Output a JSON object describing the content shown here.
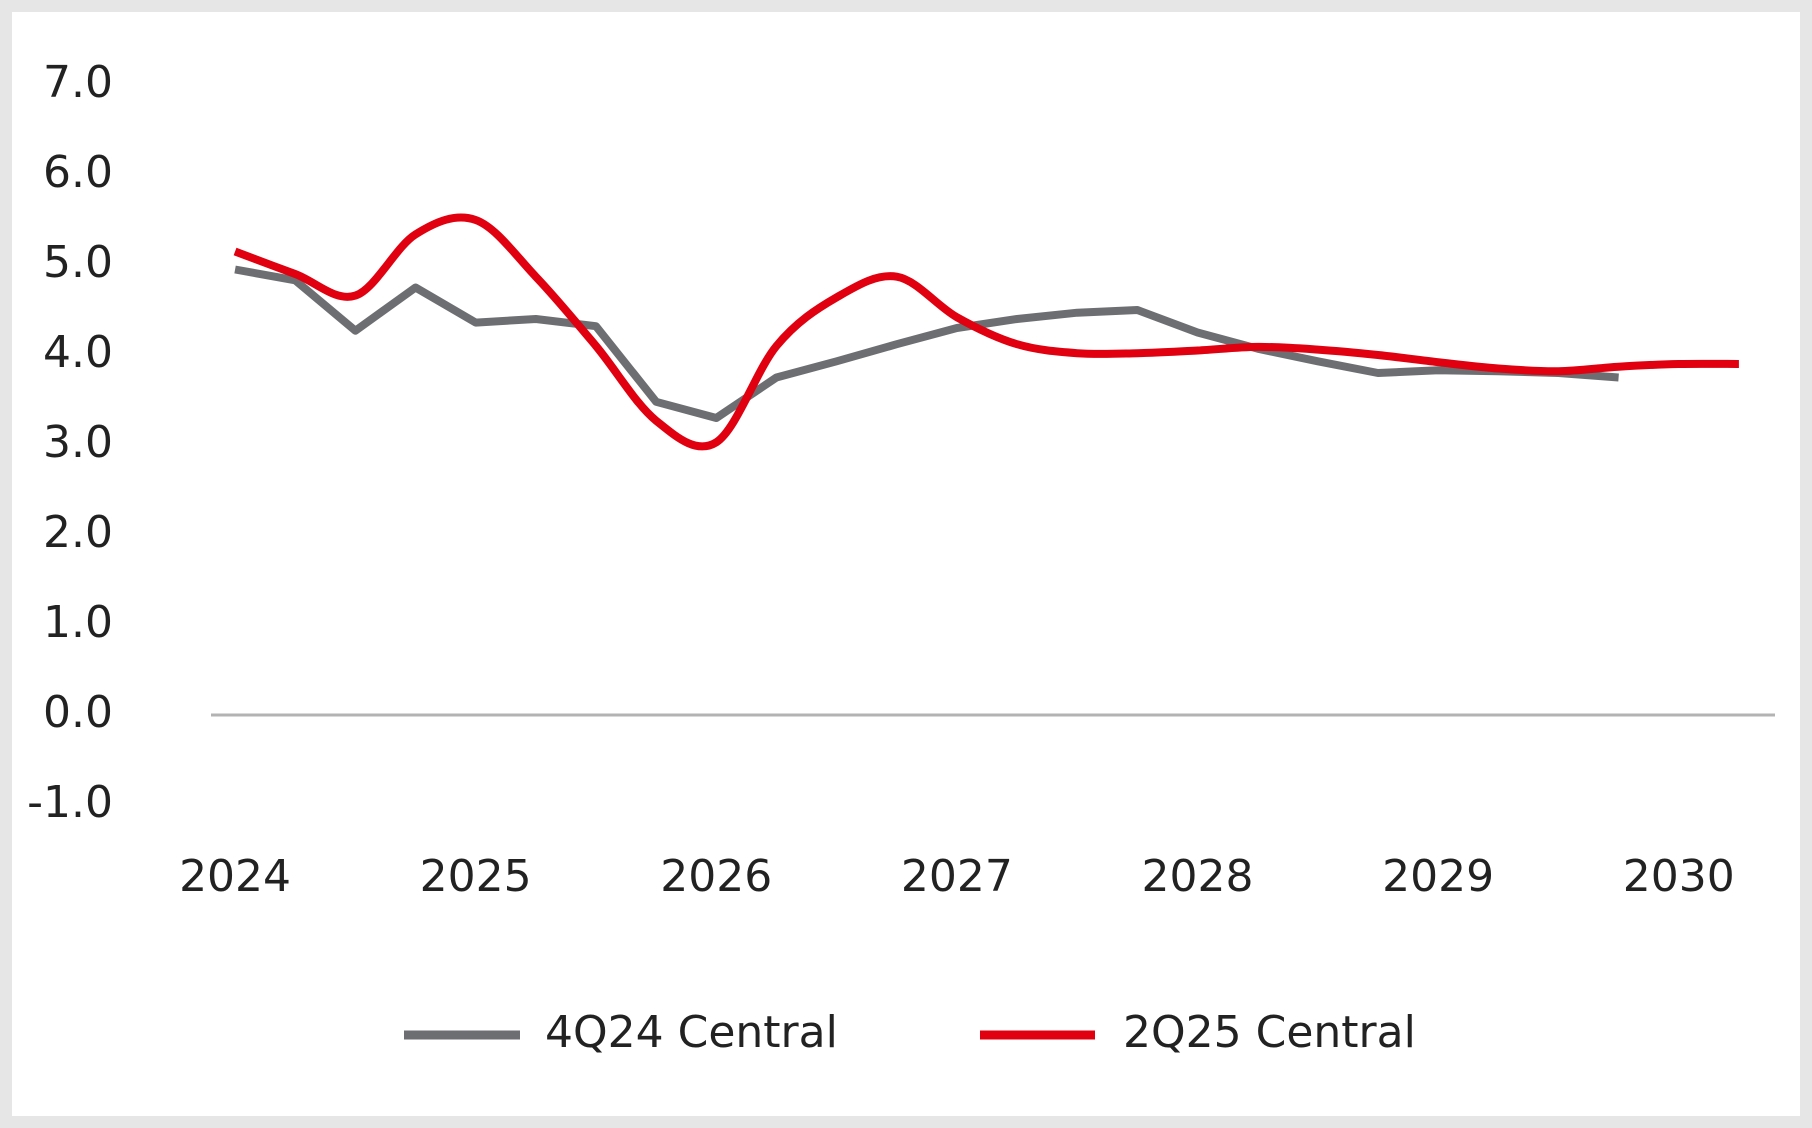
{
  "chart_data": {
    "type": "line",
    "xlim": [
      2023.9,
      2030.4
    ],
    "xticks": [
      2024,
      2025,
      2026,
      2027,
      2028,
      2029,
      2030
    ],
    "ylim": [
      -1,
      7
    ],
    "yticks": [
      {
        "value": -1,
        "label": "-1.0"
      },
      {
        "value": 0,
        "label": "0.0"
      },
      {
        "value": 1,
        "label": "1.0"
      },
      {
        "value": 2,
        "label": "2.0"
      },
      {
        "value": 3,
        "label": "3.0"
      },
      {
        "value": 4,
        "label": "4.0"
      },
      {
        "value": 5,
        "label": "5.0"
      },
      {
        "value": 6,
        "label": "6.0"
      },
      {
        "value": 7,
        "label": "7.0"
      }
    ],
    "grid": false,
    "zero_line": true,
    "legend": "bottom",
    "series": [
      {
        "name": "4Q24 Central",
        "color": "#6d6e71",
        "smooth": false,
        "x": [
          2024,
          2024.25,
          2024.5,
          2024.75,
          2025,
          2025.25,
          2025.5,
          2025.75,
          2026,
          2026.25,
          2026.5,
          2026.75,
          2027,
          2027.25,
          2027.5,
          2027.75,
          2028,
          2028.25,
          2028.5,
          2028.75,
          2029,
          2029.25,
          2029.5,
          2029.75
        ],
        "values": [
          4.95,
          4.83,
          4.27,
          4.75,
          4.36,
          4.4,
          4.32,
          3.48,
          3.3,
          3.75,
          3.93,
          4.12,
          4.3,
          4.4,
          4.47,
          4.5,
          4.25,
          4.07,
          3.93,
          3.8,
          3.83,
          3.82,
          3.8,
          3.75
        ]
      },
      {
        "name": "2Q25 Central",
        "color": "#e0000f",
        "smooth": true,
        "x": [
          2024,
          2024.25,
          2024.5,
          2024.75,
          2025,
          2025.25,
          2025.5,
          2025.75,
          2026,
          2026.25,
          2026.5,
          2026.75,
          2027,
          2027.25,
          2027.5,
          2027.75,
          2028,
          2028.25,
          2028.5,
          2028.75,
          2029,
          2029.25,
          2029.5,
          2029.75,
          2030,
          2030.25
        ],
        "values": [
          5.15,
          4.9,
          4.66,
          5.34,
          5.5,
          4.87,
          4.1,
          3.27,
          3.03,
          4.1,
          4.64,
          4.87,
          4.42,
          4.12,
          4.02,
          4.02,
          4.05,
          4.09,
          4.06,
          4.0,
          3.92,
          3.85,
          3.82,
          3.87,
          3.9,
          3.9
        ]
      }
    ]
  }
}
